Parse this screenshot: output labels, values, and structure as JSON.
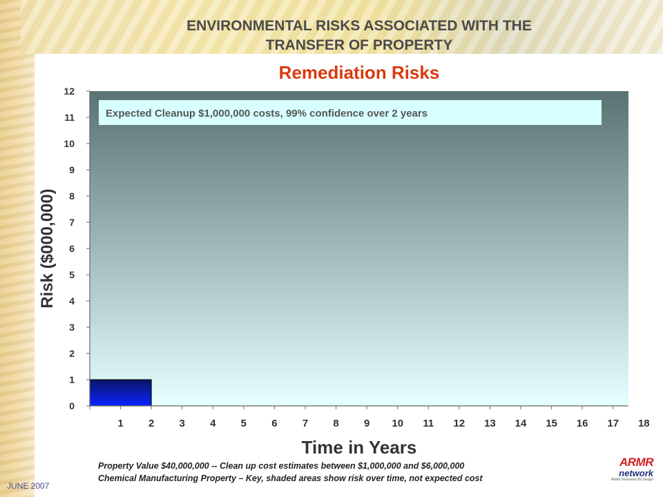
{
  "slide": {
    "title_line1": "ENVIRONMENTAL RISKS ASSOCIATED WITH THE",
    "title_line2": "TRANSFER OF PROPERTY",
    "subtitle": "Remediation Risks",
    "footer_line1": "Property Value $40,000,000 -- Clean up cost estimates between $1,000,000 and $6,000,000",
    "footer_line2": "Chemical Manufacturing Property – Key, shaded areas show risk over time, not expected cost",
    "date": "JUNE 2007",
    "logo_text": "ARMR",
    "logo_subtext": "network",
    "logo_tagline": "Better Insurance By Design"
  },
  "chart_data": {
    "type": "bar",
    "title": "",
    "xlabel": "Time in Years",
    "ylabel": "Risk ($000,000)",
    "categories": [
      "1",
      "2",
      "3",
      "4",
      "5",
      "6",
      "7",
      "8",
      "9",
      "10",
      "11",
      "12",
      "13",
      "14",
      "15",
      "16",
      "17",
      "18"
    ],
    "yticks": [
      "0",
      "1",
      "2",
      "3",
      "4",
      "5",
      "6",
      "7",
      "8",
      "9",
      "10",
      "11",
      "12"
    ],
    "ylim": [
      0,
      12
    ],
    "bars": [
      {
        "from": 0,
        "to": 2,
        "value": 1
      }
    ],
    "annotation": "Expected Cleanup  $1,000,000 costs, 99% confidence over 2 years",
    "colors": {
      "bar_top": "#0a1466",
      "bar_bottom": "#0a22ff",
      "plot_top": "#5a7272",
      "plot_bottom": "#e6ffff",
      "annotation_bg": "#d8ffff"
    }
  }
}
